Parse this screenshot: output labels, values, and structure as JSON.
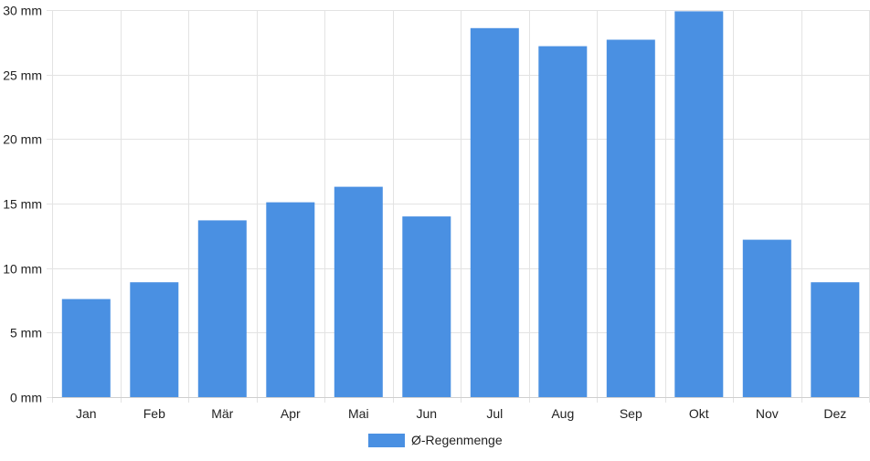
{
  "chart_data": {
    "type": "bar",
    "categories": [
      "Jan",
      "Feb",
      "Mär",
      "Apr",
      "Mai",
      "Jun",
      "Jul",
      "Aug",
      "Sep",
      "Okt",
      "Nov",
      "Dez"
    ],
    "series": [
      {
        "name": "Ø-Regenmenge",
        "values": [
          7.6,
          8.9,
          13.7,
          15.1,
          16.3,
          14.0,
          28.6,
          27.2,
          27.7,
          29.9,
          12.2,
          8.9
        ],
        "color": "#4a90e2"
      }
    ],
    "y_ticks": [
      "0 mm",
      "5 mm",
      "10 mm",
      "15 mm",
      "20 mm",
      "25 mm",
      "30 mm"
    ],
    "ylim": [
      0,
      30
    ],
    "y_unit": "mm",
    "grid": true,
    "legend_position": "bottom-center"
  }
}
